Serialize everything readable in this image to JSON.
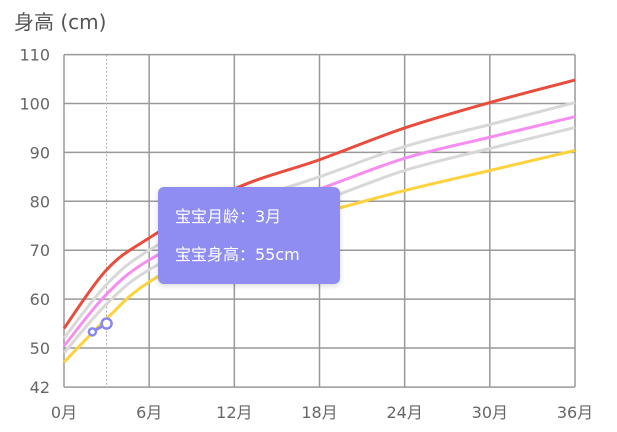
{
  "chart_data": {
    "type": "line",
    "ylabel": "身高 (cm)",
    "xlim": [
      0,
      36
    ],
    "ylim": [
      42,
      110
    ],
    "y_ticks": [
      42,
      50,
      60,
      70,
      80,
      90,
      100,
      110
    ],
    "x_ticks": [
      0,
      6,
      12,
      18,
      24,
      30,
      36
    ],
    "x_tick_labels": [
      "0月",
      "6月",
      "12月",
      "18月",
      "24月",
      "30月",
      "36月"
    ],
    "grid": true,
    "x": [
      0,
      3,
      6,
      12,
      18,
      24,
      30,
      36
    ],
    "series": [
      {
        "color": "#e84c3d",
        "values": [
          54,
          66,
          72.5,
          82.5,
          88.5,
          95,
          100.2,
          104.8
        ]
      },
      {
        "color": "#d8d8d8",
        "values": [
          52,
          63,
          70,
          79,
          85,
          91.2,
          95.7,
          100.2
        ]
      },
      {
        "color": "#f58ef0",
        "values": [
          50.4,
          61,
          68,
          76.5,
          82.5,
          88.8,
          93.1,
          97.3
        ]
      },
      {
        "color": "#d8d8d8",
        "values": [
          49,
          59,
          66,
          74.5,
          80,
          86.3,
          90.8,
          95.1
        ]
      },
      {
        "color": "#fdd23c",
        "values": [
          47.1,
          56,
          63.5,
          72.5,
          77.5,
          82.2,
          86.3,
          90.4
        ]
      }
    ],
    "baby_series": {
      "color": "#8a87ee",
      "x": [
        2,
        3
      ],
      "values": [
        53.3,
        55
      ]
    },
    "highlight_month": 3
  },
  "tooltip": {
    "line1": "宝宝月龄：3月",
    "line2": "宝宝身高：55cm"
  }
}
